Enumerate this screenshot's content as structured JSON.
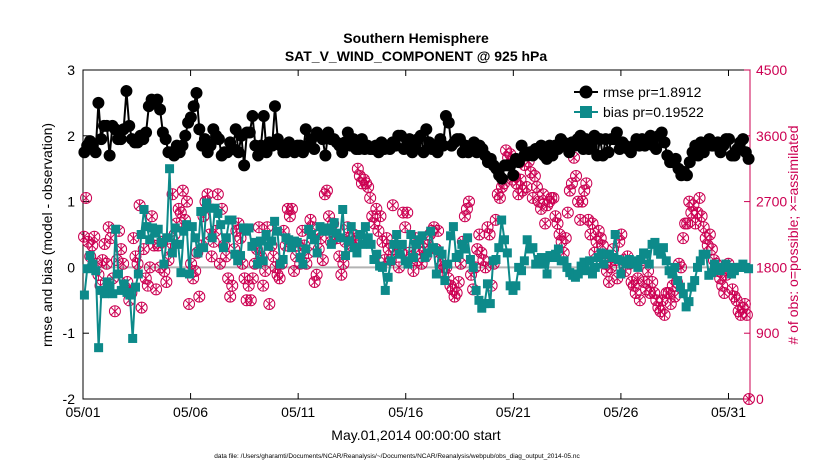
{
  "chart_data": {
    "type": "line",
    "title": "Southern Hemisphere",
    "subtitle": "SAT_V_WIND_COMPONENT @ 925 hPa",
    "xlabel": "May.01,2014 00:00:00 start",
    "ylabel": "rmse and bias (model - observation)",
    "ylabel_right": "# of obs: o=possible; ×=assimilated",
    "footnote": "data file: /Users/gharamti/Documents/NCAR/Reanalysis/~/Documents/NCAR/Reanalysis/webpub/obs_diag_output_2014-05.nc",
    "x_tick_labels": [
      "05/01",
      "05/06",
      "05/11",
      "05/16",
      "05/21",
      "05/26",
      "05/31"
    ],
    "x_tick_days": [
      0,
      5,
      10,
      15,
      20,
      25,
      30
    ],
    "xlim": [
      0,
      31
    ],
    "ylim": [
      -2,
      3
    ],
    "y_ticks": [
      -2,
      -1,
      0,
      1,
      2,
      3
    ],
    "ylim_right": [
      0,
      4500
    ],
    "y_ticks_right": [
      0,
      900,
      1800,
      2700,
      3600,
      4500
    ],
    "zero_line": 0,
    "legend_position": "top-right",
    "colors": {
      "rmse": "#000000",
      "bias": "#0d8a8a",
      "obs": "#cc0052",
      "zero_line": "#b3b3b3"
    },
    "series": [
      {
        "name": "rmse pr=1.8912",
        "marker": "circle",
        "values": [
          1.75,
          1.85,
          1.92,
          1.85,
          1.75,
          2.5,
          1.95,
          2.15,
          2.15,
          1.7,
          2.15,
          2.1,
          1.95,
          1.95,
          2.1,
          2.68,
          2.15,
          1.95,
          1.9,
          1.9,
          2.0,
          1.95,
          2.05,
          2.45,
          2.55,
          2.5,
          2.55,
          2.4,
          2.05,
          1.95,
          1.75,
          1.75,
          1.7,
          1.85,
          1.75,
          1.85,
          2.0,
          2.2,
          2.28,
          2.45,
          2.65,
          2.1,
          1.85,
          1.95,
          1.75,
          1.85,
          2.1,
          2.0,
          1.95,
          1.7,
          1.75,
          1.75,
          1.9,
          1.8,
          2.1,
          1.75,
          2.0,
          1.55,
          2.05,
          2.05,
          2.3,
          1.85,
          1.7,
          1.85,
          2.3,
          1.75,
          1.9,
          1.85,
          2.45,
          1.95,
          1.85,
          1.75,
          1.75,
          1.9,
          1.8,
          1.75,
          1.85,
          1.85,
          1.75,
          2.1,
          1.85,
          1.95,
          1.8,
          2.05,
          2.0,
          1.95,
          1.7,
          2.05,
          1.95,
          1.95,
          1.9,
          1.85,
          1.75,
          1.9,
          2.05,
          1.85,
          1.95,
          1.8,
          1.8,
          1.95,
          1.8,
          1.85,
          1.8,
          1.8,
          1.85,
          1.75,
          1.9,
          1.8,
          1.85,
          1.8,
          1.9,
          1.85,
          2.0,
          2.0,
          1.8,
          1.85,
          1.95,
          1.75,
          1.85,
          1.95,
          2.0,
          1.75,
          2.1,
          1.9,
          1.8,
          1.85,
          1.75,
          1.95,
          1.85,
          2.3,
          2.2,
          1.85,
          1.9,
          1.95,
          1.95,
          1.75,
          1.85,
          1.75,
          1.85,
          1.9,
          1.75,
          1.85,
          1.8,
          1.7,
          1.6,
          1.65,
          1.55,
          1.5,
          1.4,
          1.35,
          1.55,
          1.55,
          1.55,
          1.4,
          1.65,
          1.6,
          1.85,
          1.7,
          1.7,
          1.75,
          1.7,
          1.8,
          1.75,
          1.85,
          1.7,
          1.65,
          1.85,
          1.7,
          1.85,
          1.8,
          1.95,
          1.9,
          1.85,
          1.75,
          1.9,
          1.85,
          1.95,
          2.0,
          1.8,
          1.95,
          1.8,
          1.85,
          2.0,
          1.7,
          1.95,
          1.7,
          1.95,
          1.75,
          1.95,
          1.95,
          2.05,
          1.8,
          1.9,
          1.85,
          1.8,
          1.75,
          1.85,
          1.95,
          1.85,
          1.95,
          1.85,
          1.9,
          2.0,
          1.85,
          1.8,
          2.0,
          2.05,
          1.9,
          1.7,
          1.6,
          1.6,
          1.65,
          1.5,
          1.4,
          1.45,
          1.4,
          1.6,
          1.75,
          1.85,
          1.7,
          1.9,
          1.75,
          1.85,
          1.95,
          1.85,
          1.85,
          1.9,
          1.75,
          1.85,
          1.95,
          1.95,
          1.7,
          1.7,
          1.8,
          1.9,
          1.95,
          1.75,
          1.65
        ]
      },
      {
        "name": "bias pr=0.19522",
        "marker": "square",
        "values": [
          -0.42,
          -0.02,
          0.18,
          0.05,
          -0.05,
          -1.22,
          -0.35,
          -0.4,
          -0.22,
          -0.28,
          -0.4,
          0.58,
          -0.1,
          -0.35,
          -0.25,
          -0.38,
          -0.42,
          -1.08,
          -0.3,
          -0.1,
          0.5,
          0.88,
          0.62,
          0.42,
          0.6,
          0.52,
          0.58,
          0.38,
          0.05,
          0.45,
          1.5,
          0.22,
          0.6,
          0.35,
          -0.08,
          0.55,
          0.65,
          -0.1,
          0.62,
          0.45,
          0.22,
          0.85,
          0.3,
          0.98,
          0.9,
          0.45,
          0.9,
          0.82,
          0.65,
          0.3,
          0.45,
          0.72,
          0.72,
          0.2,
          0.1,
          0.18,
          0.6,
          0.55,
          0.6,
          0.32,
          0.38,
          0.05,
          0.4,
          0.1,
          0.5,
          0.32,
          0.4,
          0.7,
          0.55,
          0.05,
          0.12,
          0.45,
          0.42,
          0.3,
          0.4,
          0.38,
          0.15,
          0.05,
          0.28,
          0.58,
          0.5,
          0.42,
          0.22,
          0.62,
          0.55,
          0.6,
          0.55,
          0.35,
          0.68,
          0.52,
          0.45,
          0.88,
          0.18,
          0.4,
          0.62,
          0.3,
          0.22,
          0.5,
          0.35,
          0.62,
          0.45,
          0.35,
          0.12,
          0.2,
          0.02,
          0.0,
          -0.35,
          -0.15,
          0.1,
          0.35,
          0.5,
          0.2,
          0.35,
          0.1,
          0.05,
          0.5,
          0.15,
          0.35,
          0.42,
          0.48,
          0.15,
          0.22,
          0.55,
          0.3,
          -0.1,
          0.25,
          0.2,
          -0.2,
          0.05,
          0.48,
          0.62,
          0.15,
          0.2,
          0.35,
          0.28,
          0.45,
          0.12,
          0.0,
          -0.35,
          -0.5,
          -0.62,
          -0.55,
          -0.25,
          -0.55,
          0.1,
          0.12,
          0.3,
          0.72,
          0.42,
          0.22,
          -0.28,
          -0.35,
          -0.28,
          0.0,
          -0.05,
          0.1,
          0.42,
          0.28,
          0.3,
          0.05,
          0.12,
          0.15,
          0.05,
          -0.1,
          0.18,
          0.15,
          0.2,
          0.28,
          0.1,
          0.1,
          0.0,
          -0.08,
          -0.12,
          -0.15,
          -0.1,
          0.02,
          0.08,
          -0.05,
          0.1,
          -0.1,
          0.0,
          0.15,
          0.22,
          0.05,
          0.2,
          0.2,
          0.15,
          0.5,
          0.12,
          -0.1,
          0.1,
          0.05,
          0.12,
          0.1,
          0.05,
          0.0,
          0.12,
          0.22,
          0.2,
          0.05,
          0.35,
          0.38,
          0.25,
          0.2,
          0.3,
          0.1,
          -0.05,
          -0.1,
          0.0,
          -0.2,
          -0.3,
          -0.4,
          -0.6,
          -0.52,
          -0.3,
          -0.2,
          0.0,
          0.1,
          0.2,
          0.2,
          -0.12,
          -0.08,
          0.05,
          0.0,
          -0.05,
          0.0,
          0.05,
          0.0,
          -0.1,
          -0.05,
          0.0,
          0.0,
          0.05,
          0.0,
          -0.02
        ]
      }
    ],
    "obs_series": {
      "name": "# of obs",
      "values": [
        2220,
        2750,
        2150,
        1950,
        2100,
        2220,
        1850,
        1700,
        1550,
        1900,
        2120,
        1850,
        2350,
        2200,
        1650,
        1200,
        1900,
        2300,
        2050,
        1850,
        1500,
        1600,
        1350,
        1450,
        2200,
        1950,
        1850,
        2650,
        1250,
        2050,
        1650,
        1550,
        1800,
        2500,
        2100,
        1500,
        2100,
        1800,
        2150,
        1750,
        1600,
        1900,
        2050,
        2800,
        2250,
        2400,
        2600,
        2550,
        2850,
        2450,
        2700,
        1300,
        1850,
        1650,
        1750,
        2000,
        1400,
        2100,
        2500,
        2700,
        2800,
        2250,
        1950,
        2150,
        2300,
        2800,
        1850,
        2600,
        2100,
        1950,
        1650,
        1400,
        1550,
        2050,
        2300,
        2400,
        2200,
        1850,
        1650,
        1350,
        1550,
        1350,
        1650,
        1850,
        2050,
        2350,
        1950,
        1550,
        1750,
        2350,
        1300,
        2100,
        1950,
        1800,
        1700,
        1650,
        1850,
        2300,
        2100,
        2600,
        2500,
        2600,
        1750,
        1950,
        2100,
        1850,
        2300,
        2100,
        1850,
        2000,
        2450,
        2350,
        1600,
        1700,
        2050,
        2200,
        1900,
        2800,
        2850,
        2500,
        2150,
        2400,
        2250,
        2200,
        1950,
        1700,
        1850,
        2150,
        2350,
        2200,
        2100,
        2250,
        2150,
        3150,
        3050,
        2950,
        3000,
        2950,
        2900,
        2750,
        2500,
        2400,
        2600,
        2300,
        2500,
        2150,
        1900,
        2200,
        2050,
        1900,
        2650,
        2050,
        2100,
        1800,
        2000,
        2550,
        2350,
        2550,
        2000,
        1950,
        1750,
        2200,
        1900,
        2050,
        1850,
        2050,
        1950,
        2100,
        2250,
        2300,
        2350,
        2050,
        2300,
        1900,
        1750,
        1800,
        1800,
        1650,
        1550,
        1500,
        1400,
        1450,
        1600,
        1850,
        2150,
        2500,
        2600,
        2700,
        1700,
        1500,
        1800,
        2050,
        2250,
        2000,
        1900,
        1800,
        2350,
        2250,
        1550,
        1850,
        2450,
        2800,
        2750,
        2900,
        2950,
        3400,
        3300,
        3350,
        3000,
        3050,
        2950,
        2800,
        3000,
        2850,
        3200,
        2900,
        3250,
        3100,
        2750,
        3050,
        2900,
        2700,
        2600,
        2800,
        2400,
        2650,
        2700,
        2750,
        2750,
        2500,
        2400,
        2250,
        2150,
        2000,
        2200,
        2550,
        2850,
        2950,
        3300,
        3050,
        2700,
        2450,
        2700,
        2850,
        2950,
        2450,
        2250,
        2400,
        2000,
        2150,
        2300,
        2200,
        2100,
        1850,
        1750,
        1600,
        1800,
        2050,
        1900,
        1650,
        2150,
        2250,
        1900,
        1750,
        1950,
        1850,
        1600,
        1550,
        1450,
        1650,
        1350,
        1900,
        1600,
        1500,
        1750,
        1450,
        1600,
        1450,
        1350,
        1250,
        1200,
        1350,
        1150,
        1450,
        1450,
        1300,
        1550,
        1400,
        1600,
        1850,
        1800,
        2200,
        2400,
        2400,
        2700,
        2550,
        2650,
        2400,
        2550,
        2750,
        2500,
        2350,
        2200,
        2100,
        2250,
        2050,
        1900,
        1850,
        1750,
        1650,
        1550,
        1450,
        1700,
        1850,
        1750,
        1500,
        1400,
        1350,
        1200,
        1150,
        1250,
        1300,
        1150,
        0
      ]
    },
    "possible_obs_notes": "two markers per time: o=possible, x=assimilated (overlapping)"
  }
}
